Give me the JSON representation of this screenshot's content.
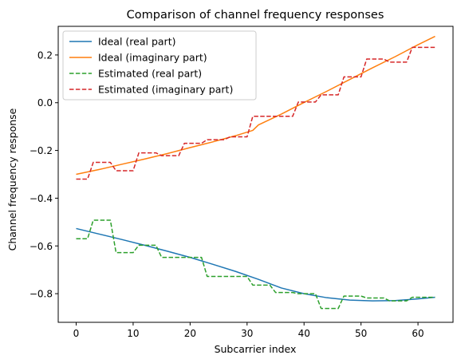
{
  "chart_data": {
    "type": "line",
    "title": "Comparison of channel frequency responses",
    "xlabel": "Subcarrier index",
    "ylabel": "Channel frequency response",
    "xlim": [
      -3.15,
      66.15
    ],
    "ylim": [
      -0.92,
      0.32
    ],
    "xticks": [
      0,
      10,
      20,
      30,
      40,
      50,
      60
    ],
    "yticks": [
      -0.8,
      -0.6,
      -0.4,
      -0.2,
      0.0,
      0.2
    ],
    "ytick_labels": [
      "−0.8",
      "−0.6",
      "−0.4",
      "−0.2",
      "0.0",
      "0.2"
    ],
    "grid": false,
    "legend_position": "top-left",
    "series": [
      {
        "name": "Ideal (real part)",
        "color": "#1f77b4",
        "dash": "solid",
        "x": [
          0,
          4,
          8,
          12,
          16,
          20,
          24,
          28,
          32,
          36,
          40,
          44,
          48,
          52,
          56,
          60,
          63
        ],
        "y": [
          -0.527,
          -0.55,
          -0.573,
          -0.597,
          -0.622,
          -0.648,
          -0.677,
          -0.707,
          -0.74,
          -0.776,
          -0.8,
          -0.817,
          -0.827,
          -0.83,
          -0.829,
          -0.822,
          -0.815
        ]
      },
      {
        "name": "Ideal (imaginary part)",
        "color": "#ff7f0e",
        "dash": "solid",
        "x": [
          0,
          4,
          8,
          12,
          16,
          20,
          24,
          28,
          31,
          32,
          36,
          40,
          44,
          48,
          52,
          56,
          60,
          63
        ],
        "y": [
          -0.3,
          -0.28,
          -0.258,
          -0.236,
          -0.213,
          -0.188,
          -0.164,
          -0.138,
          -0.116,
          -0.093,
          -0.048,
          0.001,
          0.048,
          0.097,
          0.146,
          0.193,
          0.243,
          0.278
        ]
      },
      {
        "name": "Estimated (real part)",
        "color": "#2ca02c",
        "dash": "dashed",
        "x": [
          0,
          2,
          3,
          6,
          7,
          10,
          11,
          14,
          15,
          18,
          19,
          22,
          23,
          26,
          27,
          30,
          31,
          34,
          35,
          38,
          39,
          42,
          43,
          46,
          47,
          50,
          51,
          54,
          55,
          58,
          59,
          63
        ],
        "y": [
          -0.57,
          -0.57,
          -0.492,
          -0.492,
          -0.628,
          -0.628,
          -0.597,
          -0.597,
          -0.648,
          -0.648,
          -0.648,
          -0.648,
          -0.728,
          -0.728,
          -0.728,
          -0.728,
          -0.764,
          -0.764,
          -0.795,
          -0.795,
          -0.8,
          -0.8,
          -0.862,
          -0.862,
          -0.81,
          -0.81,
          -0.818,
          -0.818,
          -0.83,
          -0.83,
          -0.815,
          -0.815
        ]
      },
      {
        "name": "Estimated (imaginary part)",
        "color": "#d62728",
        "dash": "dashed",
        "x": [
          0,
          2,
          3,
          6,
          7,
          10,
          11,
          14,
          15,
          18,
          19,
          22,
          23,
          26,
          27,
          30,
          31,
          34,
          35,
          38,
          39,
          42,
          43,
          46,
          47,
          50,
          51,
          54,
          55,
          58,
          59,
          63
        ],
        "y": [
          -0.32,
          -0.32,
          -0.25,
          -0.25,
          -0.285,
          -0.285,
          -0.21,
          -0.21,
          -0.222,
          -0.222,
          -0.17,
          -0.17,
          -0.155,
          -0.155,
          -0.143,
          -0.143,
          -0.057,
          -0.057,
          -0.057,
          -0.057,
          0.003,
          0.003,
          0.033,
          0.033,
          0.108,
          0.108,
          0.183,
          0.183,
          0.17,
          0.17,
          0.232,
          0.232
        ]
      }
    ]
  }
}
